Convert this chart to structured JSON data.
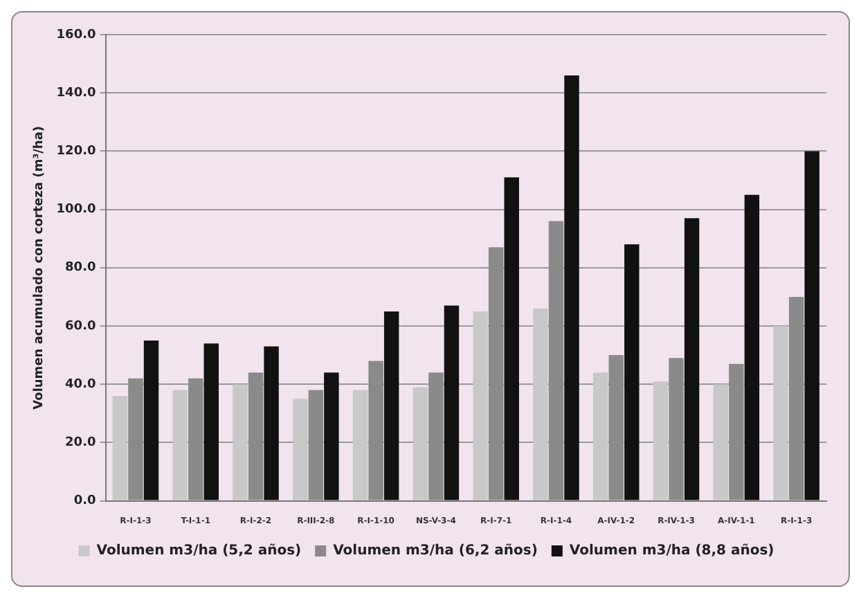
{
  "chart_data": {
    "type": "bar",
    "ylabel": "Volumen acumulado con corteza (m³/ha)",
    "categories": [
      "R-I-1-3",
      "T-I-1-1",
      "R-I-2-2",
      "R-III-2-8",
      "R-I-1-10",
      "NS-V-3-4",
      "R-I-7-1",
      "R-I-1-4",
      "A-IV-1-2",
      "R-IV-1-3",
      "A-IV-1-1",
      "R-I-1-3"
    ],
    "series": [
      {
        "name": "Volumen m3/ha (5,2 años)",
        "color": "#c8c8c8",
        "values": [
          36,
          38,
          40,
          35,
          38,
          39,
          65,
          66,
          44,
          41,
          40,
          60
        ]
      },
      {
        "name": "Volumen m3/ha (6,2 años)",
        "color": "#8a8a8a",
        "values": [
          42,
          42,
          44,
          38,
          48,
          44,
          87,
          96,
          50,
          49,
          47,
          70
        ]
      },
      {
        "name": "Volumen m3/ha (8,8 años)",
        "color": "#111111",
        "values": [
          55,
          54,
          53,
          44,
          65,
          67,
          111,
          146,
          88,
          97,
          105,
          120
        ]
      }
    ],
    "ylim": [
      0,
      160
    ],
    "yticks": [
      {
        "value": 0,
        "label": "0.0"
      },
      {
        "value": 20,
        "label": "20.0"
      },
      {
        "value": 40,
        "label": "40.0"
      },
      {
        "value": 60,
        "label": "60.0"
      },
      {
        "value": 80,
        "label": "80.0"
      },
      {
        "value": 100,
        "label": "100.0"
      },
      {
        "value": 120,
        "label": "120.0"
      },
      {
        "value": 140,
        "label": "140.0"
      },
      {
        "value": 160,
        "label": "160.0"
      }
    ],
    "grid": "y",
    "legend": "bottom"
  }
}
